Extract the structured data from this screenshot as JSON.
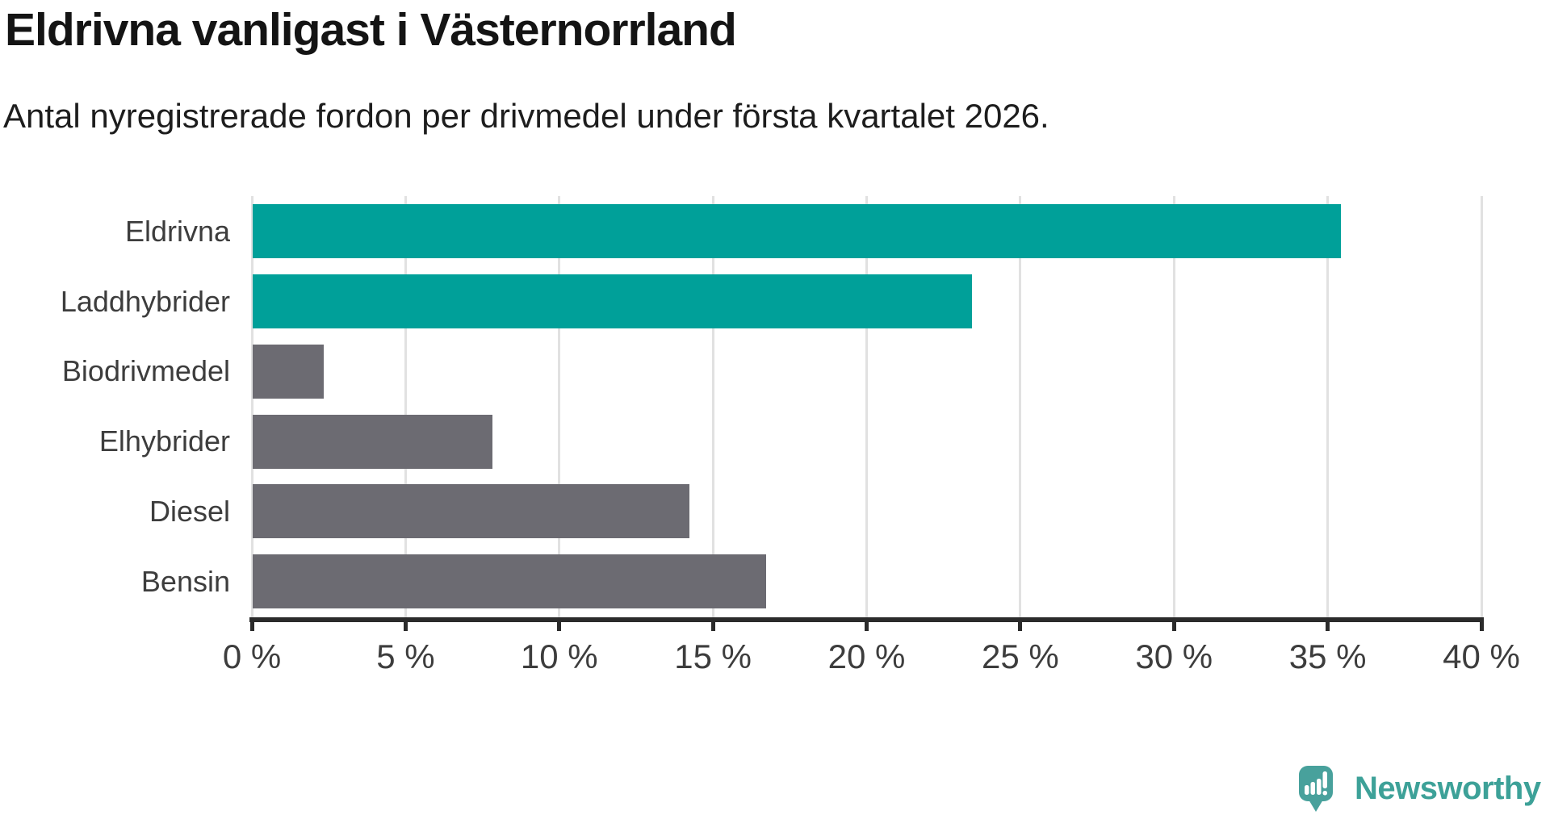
{
  "header": {
    "title": "Eldrivna vanligast i Västernorrland",
    "subtitle": "Antal nyregistrerade fordon per drivmedel under första kvartalet 2026."
  },
  "chart_data": {
    "type": "bar",
    "orientation": "horizontal",
    "title": "Eldrivna vanligast i Västernorrland",
    "subtitle": "Antal nyregistrerade fordon per drivmedel under första kvartalet 2026.",
    "categories": [
      "Eldrivna",
      "Laddhybrider",
      "Biodrivmedel",
      "Elhybrider",
      "Diesel",
      "Bensin"
    ],
    "values": [
      35.4,
      23.4,
      2.3,
      7.8,
      14.2,
      16.7
    ],
    "unit": "%",
    "xlabel": "",
    "ylabel": "",
    "xlim": [
      0,
      40
    ],
    "xticks": [
      0,
      5,
      10,
      15,
      20,
      25,
      30,
      35,
      40
    ],
    "xtick_labels": [
      "0 %",
      "5 %",
      "10 %",
      "15 %",
      "20 %",
      "25 %",
      "30 %",
      "35 %",
      "40 %"
    ],
    "grid": "vertical-only",
    "legend": "none",
    "bar_colors": [
      "#00a099",
      "#00a099",
      "#6c6b72",
      "#6c6b72",
      "#6c6b72",
      "#6c6b72"
    ],
    "highlight_color": "#00a099",
    "default_color": "#6c6b72",
    "gridline_color": "#e1e1e1",
    "axis_color": "#2b2b2b"
  },
  "footer": {
    "brand": "Newsworthy",
    "brand_color": "#3da198",
    "logo_bubble_color": "#48a19c"
  }
}
